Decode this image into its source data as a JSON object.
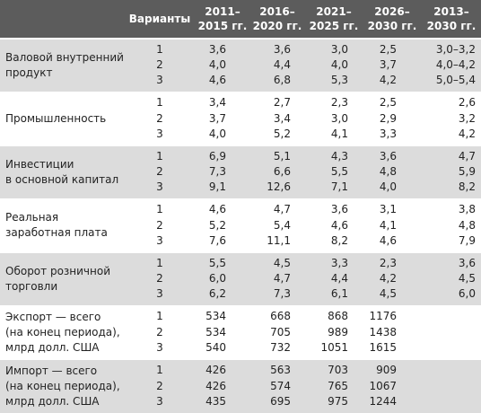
{
  "table": {
    "header": [
      "Варианты",
      "2011–\n2015 гг.",
      "2016–\n2020 гг.",
      "2021–\n2025 гг.",
      "2026–\n2030 гг.",
      "2013–\n2030 гг."
    ],
    "groups": [
      {
        "label": "Валовой внутренний\nпродукт",
        "rows": [
          [
            "1",
            "3,6",
            "3,6",
            "3,0",
            "2,5",
            "3,0–3,2"
          ],
          [
            "2",
            "4,0",
            "4,4",
            "4,0",
            "3,7",
            "4,0–4,2"
          ],
          [
            "3",
            "4,6",
            "6,8",
            "5,3",
            "4,2",
            "5,0–5,4"
          ]
        ]
      },
      {
        "label": "Промышленность",
        "rows": [
          [
            "1",
            "3,4",
            "2,7",
            "2,3",
            "2,5",
            "2,6"
          ],
          [
            "2",
            "3,7",
            "3,4",
            "3,0",
            "2,9",
            "3,2"
          ],
          [
            "3",
            "4,0",
            "5,2",
            "4,1",
            "3,3",
            "4,2"
          ]
        ]
      },
      {
        "label": "Инвестиции\nв основной капитал",
        "rows": [
          [
            "1",
            "6,9",
            "5,1",
            "4,3",
            "3,6",
            "4,7"
          ],
          [
            "2",
            "7,3",
            "6,6",
            "5,5",
            "4,8",
            "5,9"
          ],
          [
            "3",
            "9,1",
            "12,6",
            "7,1",
            "4,0",
            "8,2"
          ]
        ]
      },
      {
        "label": "Реальная\nзаработная плата",
        "rows": [
          [
            "1",
            "4,6",
            "4,7",
            "3,6",
            "3,1",
            "3,8"
          ],
          [
            "2",
            "5,2",
            "5,4",
            "4,6",
            "4,1",
            "4,8"
          ],
          [
            "3",
            "7,6",
            "11,1",
            "8,2",
            "4,6",
            "7,9"
          ]
        ]
      },
      {
        "label": "Оборот розничной\nторговли",
        "rows": [
          [
            "1",
            "5,5",
            "4,5",
            "3,3",
            "2,3",
            "3,6"
          ],
          [
            "2",
            "6,0",
            "4,7",
            "4,4",
            "4,2",
            "4,5"
          ],
          [
            "3",
            "6,2",
            "7,3",
            "6,1",
            "4,5",
            "6,0"
          ]
        ]
      },
      {
        "label": "Экспорт — всего\n(на конец периода),\nмлрд долл. США",
        "rows": [
          [
            "1",
            "534",
            "668",
            "868",
            "1176"
          ],
          [
            "2",
            "534",
            "705",
            "989",
            "1438"
          ],
          [
            "3",
            "540",
            "732",
            "1051",
            "1615"
          ]
        ]
      },
      {
        "label": "Импорт — всего\n(на конец периода),\nмлрд долл. США",
        "rows": [
          [
            "1",
            "426",
            "563",
            "703",
            "909"
          ],
          [
            "2",
            "426",
            "574",
            "765",
            "1067"
          ],
          [
            "3",
            "435",
            "695",
            "975",
            "1244"
          ]
        ]
      }
    ]
  }
}
